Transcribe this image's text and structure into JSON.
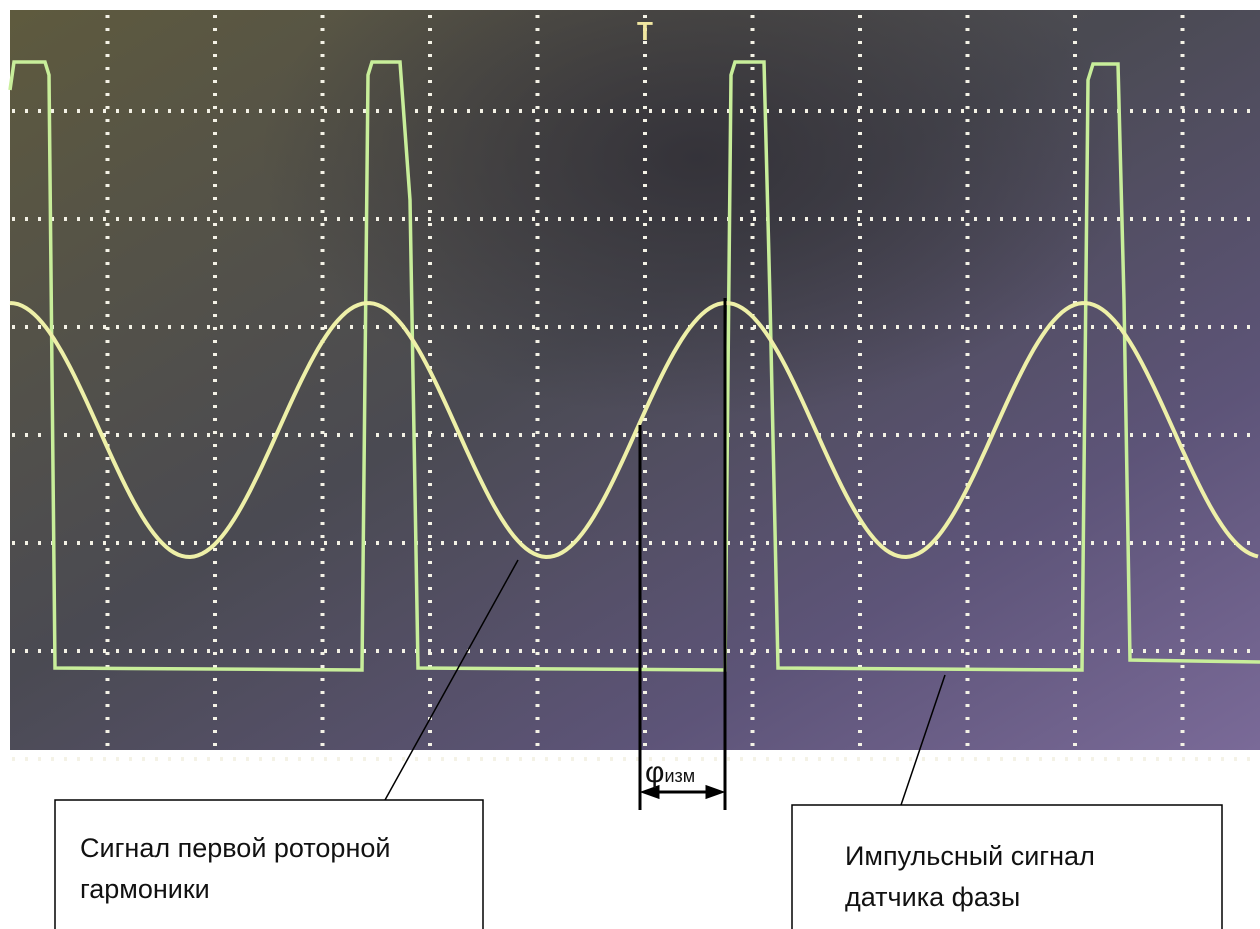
{
  "trigger_marker": "T",
  "phase_label": {
    "symbol": "φ",
    "subscript": "изм"
  },
  "labels": [
    {
      "lines": [
        "Сигнал первой роторной",
        "гармоники"
      ]
    },
    {
      "lines": [
        "Импульсный сигнал",
        "датчика фазы"
      ]
    }
  ]
}
